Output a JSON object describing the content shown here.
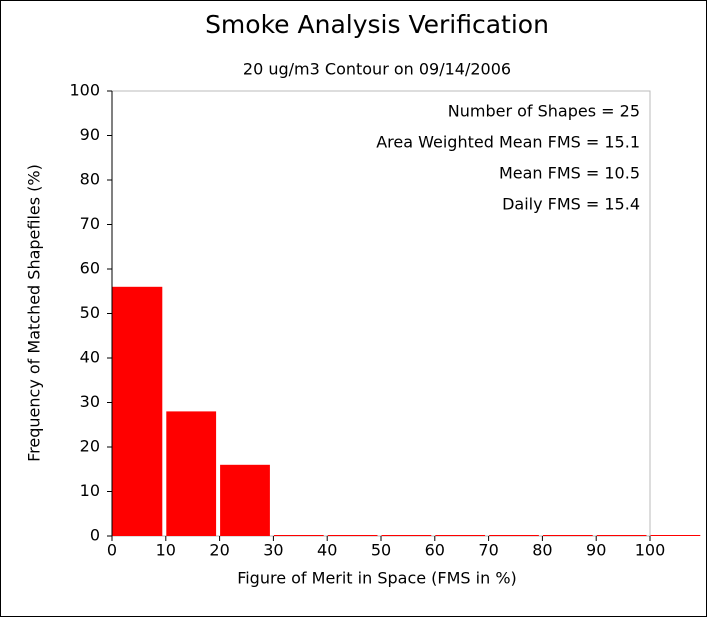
{
  "chart_data": {
    "type": "histogram",
    "title": "Smoke Analysis Verification",
    "subtitle": "20 ug/m3 Contour on 09/14/2006",
    "x_label": "Figure of Merit in Space (FMS in %)",
    "y_label": "Frequency of Matched Shapefiles (%)",
    "annotations": [
      "Number of Shapes = 25",
      "Area Weighted Mean FMS = 15.1",
      "Mean FMS = 10.5",
      "Daily FMS = 15.4"
    ],
    "bins": [
      0,
      10,
      20,
      30,
      40,
      50,
      60,
      70,
      80,
      90,
      100,
      110
    ],
    "values": [
      56,
      28,
      16,
      0,
      0,
      0,
      0,
      0,
      0,
      0,
      0
    ],
    "color": "#ff0000",
    "xlim": [
      0,
      100
    ],
    "xticks": [
      0,
      10,
      20,
      30,
      40,
      50,
      60,
      70,
      80,
      90,
      100
    ],
    "ylim": [
      0,
      100
    ],
    "yticks": [
      0,
      10,
      20,
      30,
      40,
      50,
      60,
      70,
      80,
      90,
      100
    ]
  }
}
